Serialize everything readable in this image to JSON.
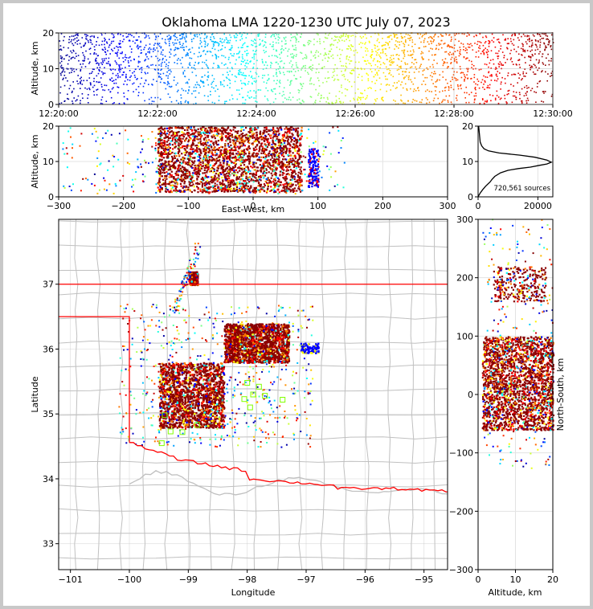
{
  "title": "Oklahoma LMA 1220-1230 UTC July 07, 2023",
  "colors": {
    "jet": [
      "#00008f",
      "#0000ff",
      "#007fff",
      "#00ffff",
      "#7fff7f",
      "#ffff00",
      "#ff7f00",
      "#ff0000",
      "#7f0000"
    ],
    "dense": "#8b0000",
    "state_border": "#ff0000",
    "county_lines": "#c0c0c0",
    "histogram_line": "#000000",
    "network_station": "#80ff00"
  },
  "chart_data": [
    {
      "panel": "time-altitude",
      "type": "scatter",
      "xlabel": "",
      "ylabel": "Altitude, km",
      "xlim": [
        "12:20:00",
        "12:30:00"
      ],
      "ylim": [
        0,
        20
      ],
      "xticks": [
        "12:20:00",
        "12:22:00",
        "12:24:00",
        "12:26:00",
        "12:28:00",
        "12:30:00"
      ],
      "yticks": [
        0,
        10,
        20
      ],
      "color_by": "time",
      "grid": true
    },
    {
      "panel": "east-west-altitude",
      "type": "scatter",
      "xlabel": "East-West, km",
      "ylabel": "Altitude, km",
      "xlim": [
        -300,
        300
      ],
      "ylim": [
        0,
        20
      ],
      "xticks": [
        -300,
        -200,
        -100,
        0,
        100,
        200,
        300
      ],
      "yticks": [
        0,
        10,
        20
      ],
      "clusters": [
        {
          "x_range": [
            -150,
            75
          ],
          "alt_range": [
            1,
            20
          ],
          "density": "high"
        },
        {
          "x_range": [
            80,
            100
          ],
          "alt_range": [
            3,
            14
          ],
          "density": "medium"
        }
      ]
    },
    {
      "panel": "altitude-histogram",
      "type": "line",
      "xlabel": "",
      "ylabel": "",
      "xlim": [
        0,
        25000
      ],
      "ylim": [
        0,
        20
      ],
      "xticks": [
        0,
        20000
      ],
      "yticks": [
        0,
        10,
        20
      ],
      "annotation": "720,561 sources",
      "x": [
        0,
        300,
        800,
        1500,
        2500,
        4000,
        4700,
        5600,
        7500,
        10000,
        13500,
        17500,
        20500,
        23000,
        24500,
        23000,
        19000,
        14000,
        7000,
        3500,
        2000,
        1200,
        700,
        200
      ],
      "y": [
        0,
        0.5,
        1.2,
        2.0,
        3.0,
        4.2,
        5.0,
        5.8,
        6.8,
        7.5,
        8.0,
        8.4,
        8.9,
        9.3,
        9.8,
        10.4,
        11.2,
        11.8,
        12.4,
        13.0,
        13.6,
        14.4,
        15.5,
        20
      ]
    },
    {
      "panel": "plan-view",
      "type": "scatter",
      "xlabel": "Longitude",
      "ylabel": "Latitude",
      "xlim": [
        -101.2,
        -94.6
      ],
      "ylim": [
        32.6,
        38.0
      ],
      "xticks": [
        -101,
        -100,
        -99,
        -98,
        -97,
        -96,
        -95
      ],
      "yticks": [
        33,
        34,
        35,
        36,
        37
      ],
      "clusters": [
        {
          "lon_range": [
            -99.5,
            -98.4
          ],
          "lat_range": [
            34.8,
            35.8
          ],
          "density": "high"
        },
        {
          "lon_range": [
            -98.4,
            -97.3
          ],
          "lat_range": [
            35.8,
            36.4
          ],
          "density": "high"
        },
        {
          "lon_range": [
            -99.0,
            -98.85
          ],
          "lat_range": [
            37.0,
            37.2
          ],
          "density": "medium"
        },
        {
          "lon_range": [
            -97.1,
            -96.8
          ],
          "lat_range": [
            35.95,
            36.1
          ],
          "density": "low"
        }
      ],
      "network_stations": [
        {
          "lon": -98.0,
          "lat": 35.48
        },
        {
          "lon": -97.8,
          "lat": 35.42
        },
        {
          "lon": -97.9,
          "lat": 35.3
        },
        {
          "lon": -98.05,
          "lat": 35.23
        },
        {
          "lon": -97.7,
          "lat": 35.28
        },
        {
          "lon": -97.4,
          "lat": 35.22
        },
        {
          "lon": -97.95,
          "lat": 35.1
        },
        {
          "lon": -99.4,
          "lat": 34.98
        },
        {
          "lon": -99.3,
          "lat": 34.73
        },
        {
          "lon": -99.1,
          "lat": 34.72
        },
        {
          "lon": -98.85,
          "lat": 34.83
        },
        {
          "lon": -99.45,
          "lat": 34.55
        }
      ]
    },
    {
      "panel": "altitude-north-south",
      "type": "scatter",
      "xlabel": "Altitude, km",
      "ylabel": "North-South, km",
      "xlim": [
        0,
        20
      ],
      "ylim": [
        -300,
        300
      ],
      "xticks": [
        0,
        10,
        20
      ],
      "yticks": [
        -300,
        -200,
        -100,
        0,
        100,
        200,
        300
      ],
      "clusters": [
        {
          "alt_range": [
            1,
            20
          ],
          "ns_range": [
            -60,
            100
          ],
          "density": "high"
        },
        {
          "alt_range": [
            4,
            18
          ],
          "ns_range": [
            160,
            220
          ],
          "density": "medium"
        }
      ]
    }
  ]
}
